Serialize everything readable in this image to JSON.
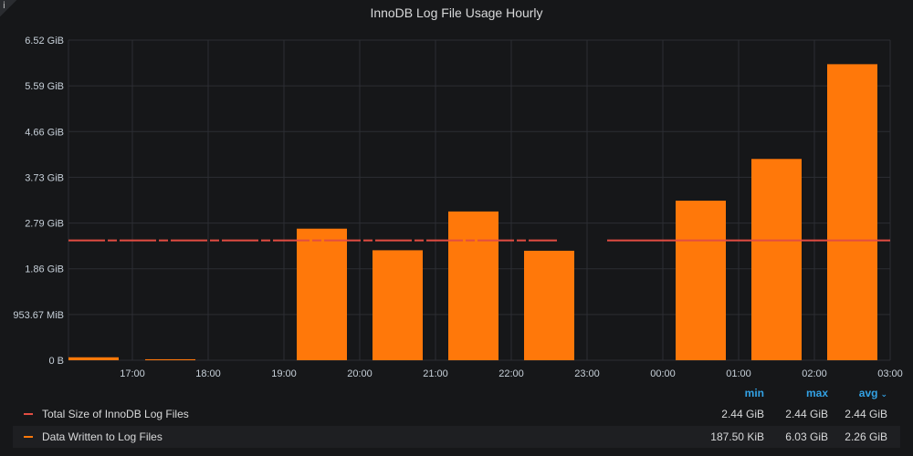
{
  "panel": {
    "title": "InnoDB Log File Usage Hourly",
    "info_icon": "i"
  },
  "colors": {
    "background": "#161719",
    "grid": "#2c2e33",
    "bars": "#ff780a",
    "line": "#e24d42",
    "legend_header": "#33a2e5"
  },
  "chart_data": {
    "type": "bar",
    "title": "InnoDB Log File Usage Hourly",
    "x_unit": "time (hourly)",
    "x_ticks": [
      "17:00",
      "18:00",
      "19:00",
      "20:00",
      "21:00",
      "22:00",
      "23:00",
      "00:00",
      "01:00",
      "02:00",
      "03:00"
    ],
    "x_range": [
      "16:20",
      "03:00"
    ],
    "y_ticks": [
      "0 B",
      "953.67 MiB",
      "1.86 GiB",
      "2.79 GiB",
      "3.73 GiB",
      "4.66 GiB",
      "5.59 GiB",
      "6.52 GiB"
    ],
    "ylim_gib": [
      0,
      6.52
    ],
    "grid": true,
    "legend_placement": "bottom",
    "series": [
      {
        "name": "Data Written to Log Files",
        "kind": "bars",
        "color": "#ff780a",
        "unit": "GiB",
        "points": [
          {
            "hour": "16:00",
            "value": 0.06
          },
          {
            "hour": "17:00",
            "value": 0.02
          },
          {
            "hour": "19:00",
            "value": 2.68
          },
          {
            "hour": "20:00",
            "value": 2.24
          },
          {
            "hour": "21:00",
            "value": 3.03
          },
          {
            "hour": "22:00",
            "value": 2.23
          },
          {
            "hour": "00:00",
            "value": 3.25
          },
          {
            "hour": "01:00",
            "value": 4.1
          },
          {
            "hour": "02:00",
            "value": 6.03
          }
        ]
      },
      {
        "name": "Total Size of InnoDB Log Files",
        "kind": "line",
        "color": "#e24d42",
        "unit": "GiB",
        "value": 2.44
      }
    ]
  },
  "legend": {
    "headers": {
      "min": "min",
      "max": "max",
      "avg": "avg"
    },
    "sort_icon": "chevron-down-icon",
    "rows": [
      {
        "name": "Total Size of InnoDB Log Files",
        "color": "#e24d42",
        "min": "2.44 GiB",
        "max": "2.44 GiB",
        "avg": "2.44 GiB"
      },
      {
        "name": "Data Written to Log Files",
        "color": "#ff780a",
        "min": "187.50 KiB",
        "max": "6.03 GiB",
        "avg": "2.26 GiB"
      }
    ]
  }
}
